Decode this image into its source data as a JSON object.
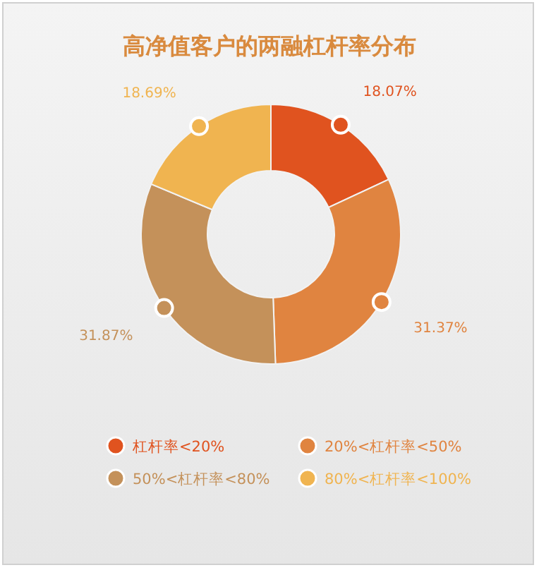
{
  "chart_data": {
    "type": "donut",
    "title": "高净值客户的两融杠杆率分布",
    "categories": [
      "杠杆率<20%",
      "20%<杠杆率<50%",
      "50%<杠杆率<80%",
      "80%<杠杆率<100%"
    ],
    "values": [
      18.07,
      31.37,
      31.87,
      18.69
    ],
    "value_labels": [
      "18.07%",
      "31.37%",
      "31.87%",
      "18.69%"
    ],
    "colors": [
      "#e0531f",
      "#e08440",
      "#c4915a",
      "#f0b450"
    ],
    "legend": "bottom"
  }
}
